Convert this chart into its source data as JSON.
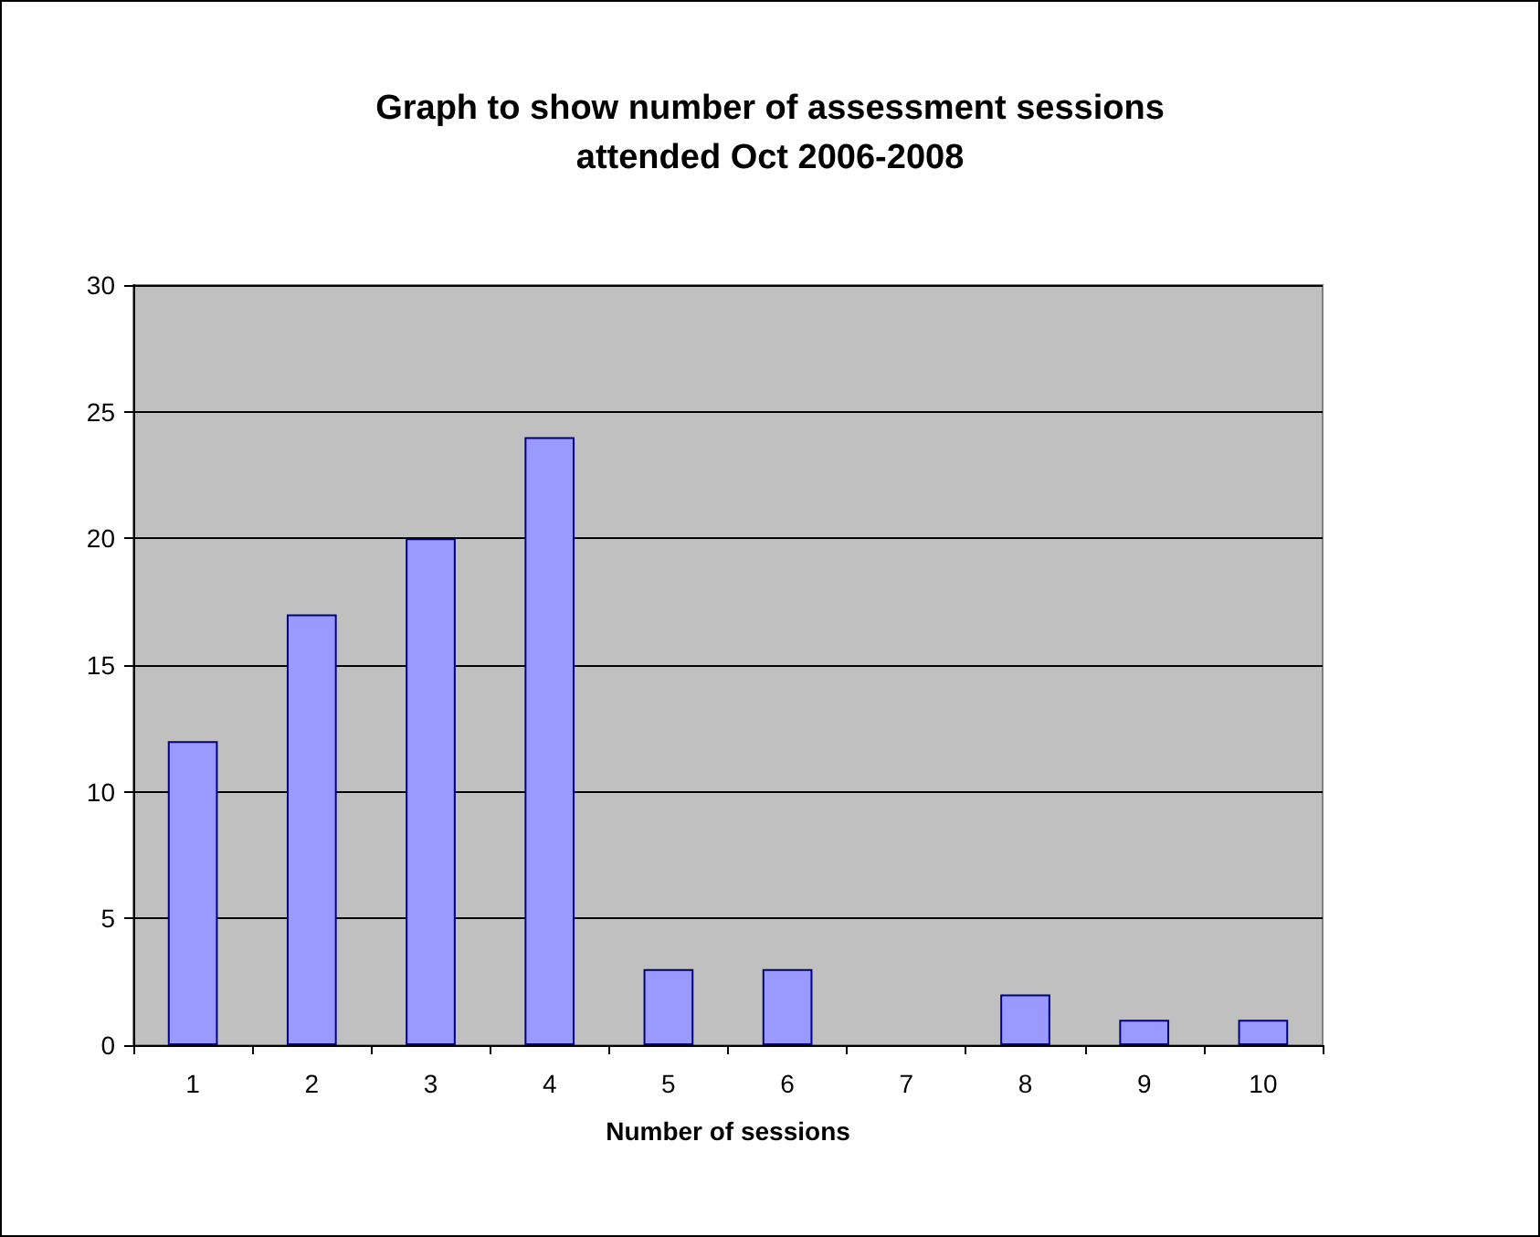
{
  "chart_data": {
    "type": "bar",
    "title": "Graph to show number of assessment sessions\nattended Oct 2006-2008",
    "xlabel": "Number of sessions",
    "categories": [
      "1",
      "2",
      "3",
      "4",
      "5",
      "6",
      "7",
      "8",
      "9",
      "10"
    ],
    "values": [
      12,
      17,
      20,
      24,
      3,
      3,
      0,
      2,
      1,
      1
    ],
    "color": "#9999ff",
    "ylim": [
      0,
      30
    ],
    "yticks": [
      0,
      5,
      10,
      15,
      20,
      25,
      30
    ],
    "grid": "y"
  }
}
